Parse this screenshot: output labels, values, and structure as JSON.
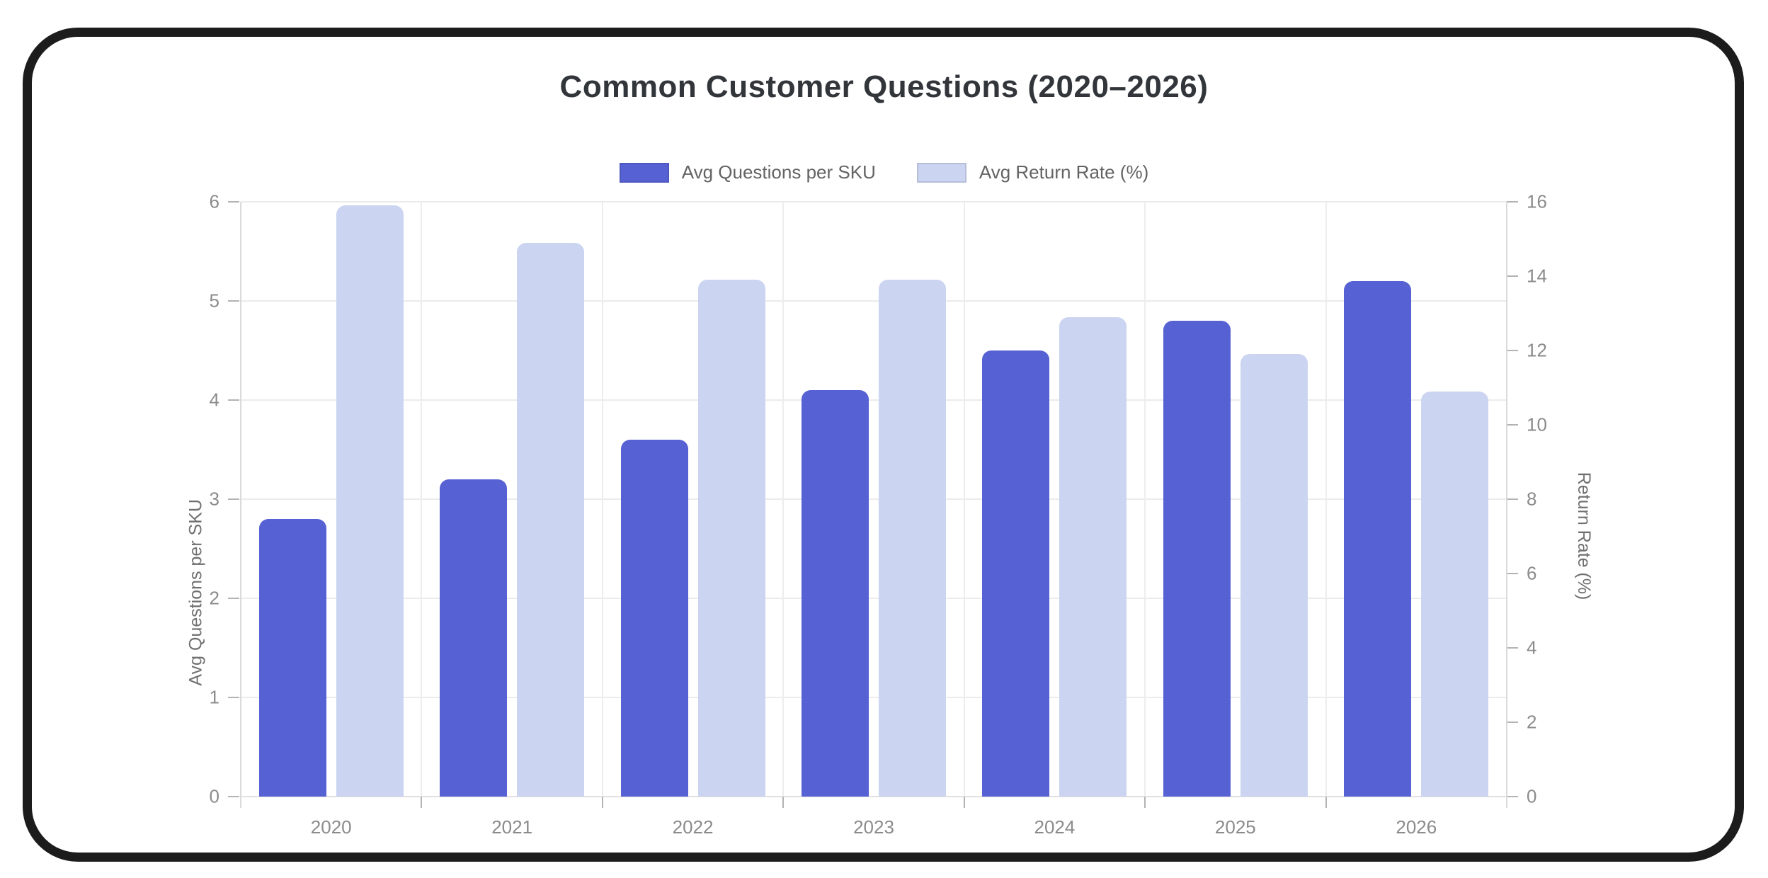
{
  "title": "Common Customer Questions (2020–2026)",
  "chart_data": {
    "type": "bar",
    "title": "Common Customer Questions (2020–2026)",
    "categories": [
      "2020",
      "2021",
      "2022",
      "2023",
      "2024",
      "2025",
      "2026"
    ],
    "series": [
      {
        "name": "Avg Questions per SKU",
        "axis": "left",
        "color": "#5661d3",
        "values": [
          2.8,
          3.2,
          3.6,
          4.1,
          4.5,
          4.8,
          5.2
        ]
      },
      {
        "name": "Avg Return Rate (%)",
        "axis": "right",
        "color": "#cbd4f1",
        "values": [
          15.9,
          14.9,
          13.9,
          13.9,
          12.9,
          11.9,
          10.9
        ]
      }
    ],
    "y_left": {
      "label": "Avg Questions per SKU",
      "min": 0,
      "max": 6,
      "step": 1
    },
    "y_right": {
      "label": "Return Rate (%)",
      "min": 0,
      "max": 16,
      "step": 2
    },
    "legend_position": "top",
    "grid": "horizontal lines at left-axis ticks, faint vertical lines at category boundaries"
  }
}
